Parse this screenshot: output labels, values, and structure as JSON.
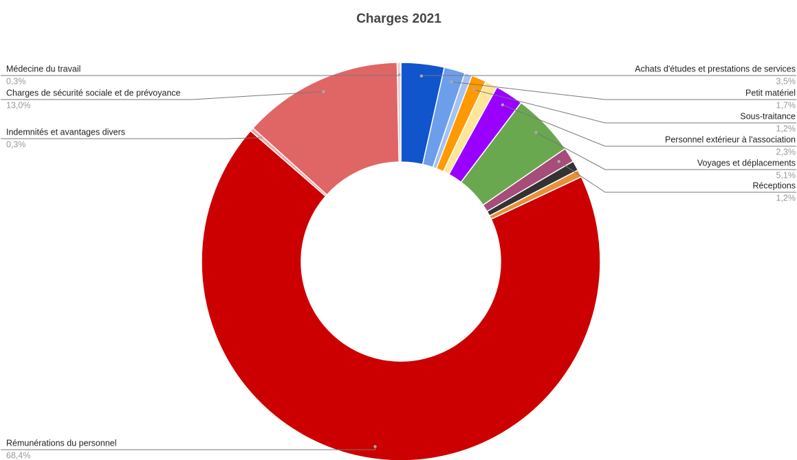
{
  "chart_data": {
    "type": "pie",
    "title": "Charges 2021",
    "donut": true,
    "categories": [
      "Achats d'études et prestations de services",
      "Petit matériel",
      null,
      "Sous-traitance",
      null,
      "Personnel extérieur à l'association",
      "Voyages et déplacements",
      "Réceptions",
      null,
      null,
      "Rémunérations du personnel",
      "Indemnités et avantages divers",
      "Charges de sécurité sociale et de prévoyance",
      "Médecine du travail"
    ],
    "values": [
      3.5,
      1.7,
      0.6,
      1.2,
      1.0,
      2.3,
      5.1,
      1.2,
      0.8,
      0.6,
      68.4,
      0.3,
      13.0,
      0.3
    ],
    "value_labels": [
      "3,5%",
      "1,7%",
      null,
      "1,2%",
      null,
      "2,3%",
      "5,1%",
      "1,2%",
      null,
      null,
      "68,4%",
      "0,3%",
      "13,0%",
      "0,3%"
    ],
    "colors": [
      "#1155cc",
      "#6d9eeb",
      "#a4c2f4",
      "#ff9900",
      "#ffe599",
      "#9900ff",
      "#6aa84f",
      "#a64d79",
      "#333333",
      "#e69138",
      "#cc0000",
      "#f4a6a6",
      "#e06666",
      "#f4cccc"
    ]
  }
}
